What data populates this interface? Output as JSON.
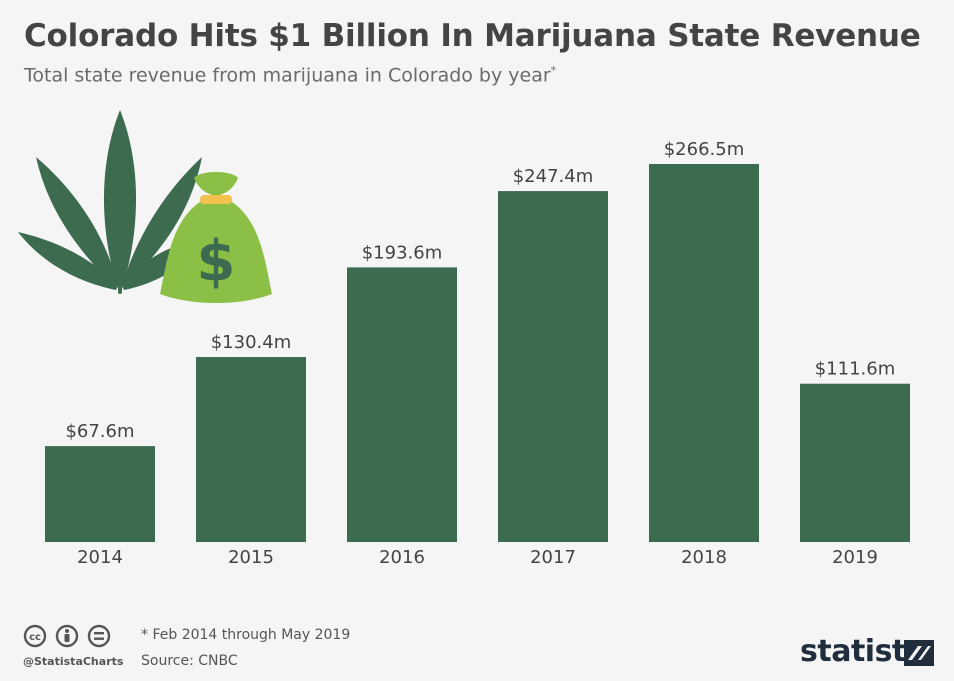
{
  "title": "Colorado Hits $1 Billion In Marijuana State Revenue",
  "subtitle": "Total state revenue from marijuana in Colorado by year",
  "subtitle_mark": "*",
  "footnote": "* Feb 2014 through May 2019",
  "source": "Source: CNBC",
  "handle": "@StatistaCharts",
  "brand": "statista",
  "colors": {
    "bar": "#3d6b4f",
    "leaf": "#3d6b4f",
    "bag": "#8bbf45",
    "bag_tie": "#f2c14e",
    "text_dark": "#444444",
    "text_label": "#555555"
  },
  "icons": [
    "cannabis-leaf-icon",
    "money-bag-icon",
    "cc-icon",
    "person-icon",
    "equals-icon",
    "statista-logo-icon"
  ],
  "chart_data": {
    "type": "bar",
    "title": "Colorado Hits $1 Billion In Marijuana State Revenue",
    "xlabel": "",
    "ylabel": "",
    "categories": [
      "2014",
      "2015",
      "2016",
      "2017",
      "2018",
      "2019"
    ],
    "values": [
      67.6,
      130.4,
      193.6,
      247.4,
      266.5,
      111.6
    ],
    "value_labels": [
      "$67.6m",
      "$130.4m",
      "$193.6m",
      "$247.4m",
      "$266.5m",
      "$111.6m"
    ],
    "unit": "million USD",
    "ylim": [
      0,
      266.5
    ],
    "grid": false
  }
}
